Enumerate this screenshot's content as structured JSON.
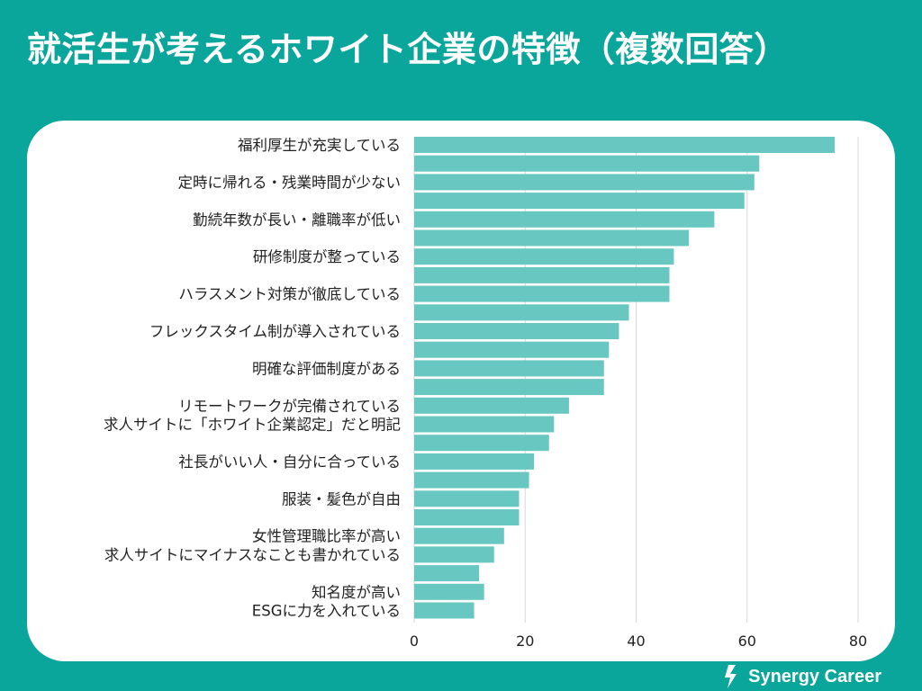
{
  "header": {
    "title": "就活生が考えるホワイト企業の特徴（複数回答）"
  },
  "brand": {
    "name": "Synergy Career"
  },
  "colors": {
    "background": "#0aa69b",
    "card": "#ffffff",
    "bar": "#68c7c1",
    "grid": "#d8d8d8",
    "text": "#222222"
  },
  "chart_data": {
    "type": "bar",
    "orientation": "horizontal",
    "title": "就活生が考えるホワイト企業の特徴（複数回答）",
    "xlabel": "",
    "ylabel": "",
    "xlim": [
      0,
      80
    ],
    "x_ticks": [
      0,
      20,
      40,
      60,
      80
    ],
    "grid": "vertical",
    "categories": [
      "福利厚生が充実している",
      "",
      "定時に帰れる・残業時間が少ない",
      "",
      "勤続年数が長い・離職率が低い",
      "",
      "研修制度が整っている",
      "",
      "ハラスメント対策が徹底している",
      "",
      "フレックスタイム制が導入されている",
      "",
      "明確な評価制度がある",
      "",
      "リモートワークが完備されている",
      "求人サイトに「ホワイト企業認定」だと明記",
      "",
      "社長がいい人・自分に合っている",
      "",
      "服装・髪色が自由",
      "",
      "女性管理職比率が高い",
      "求人サイトにマイナスなことも書かれている",
      "",
      "知名度が高い",
      "ESGに力を入れている"
    ],
    "values": [
      75.8,
      62.2,
      61.3,
      59.5,
      54.1,
      49.5,
      46.8,
      46.0,
      46.0,
      38.7,
      36.9,
      35.1,
      34.2,
      34.2,
      27.9,
      25.2,
      24.3,
      21.6,
      20.7,
      18.9,
      18.9,
      16.2,
      14.4,
      11.7,
      12.6,
      10.8
    ]
  }
}
